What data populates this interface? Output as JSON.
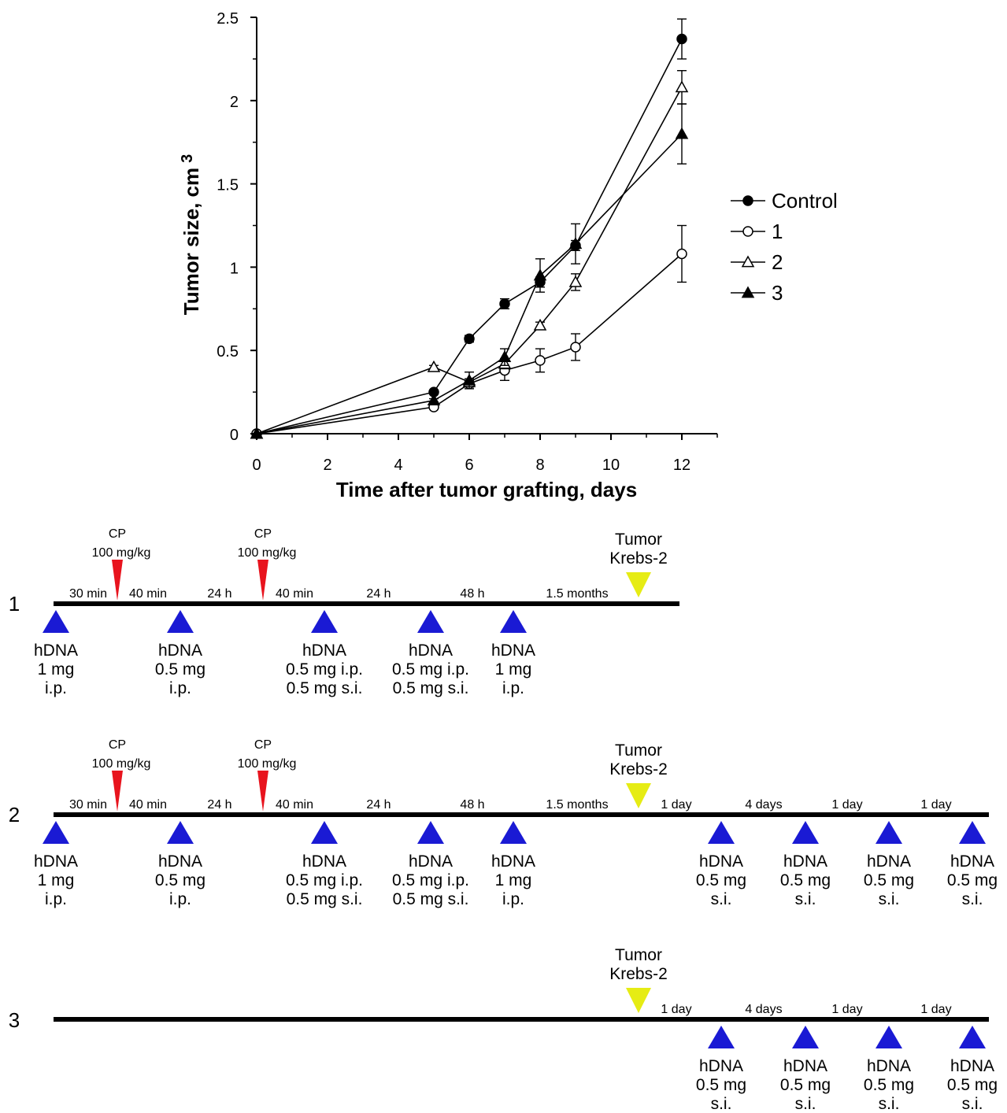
{
  "chart_data": {
    "type": "line",
    "title": "",
    "xlabel": "Time after tumor grafting, days",
    "ylabel": "Tumor size, cm",
    "ylabel_superscript": "3",
    "xlim": [
      0,
      13
    ],
    "ylim": [
      0,
      2.5
    ],
    "xticks": [
      0,
      2,
      4,
      6,
      8,
      10,
      12
    ],
    "yticks": [
      0,
      0.5,
      1,
      1.5,
      2,
      2.5
    ],
    "xtick_labels": [
      "0",
      "2",
      "4",
      "6",
      "8",
      "10",
      "12"
    ],
    "ytick_labels": [
      "0",
      "0.5",
      "1",
      "1.5",
      "2",
      "2.5"
    ],
    "grid": false,
    "legend_position": "right",
    "series": [
      {
        "name": "Control",
        "marker": "circle-filled",
        "x": [
          0,
          5,
          6,
          7,
          8,
          9,
          12
        ],
        "y": [
          0,
          0.25,
          0.57,
          0.78,
          0.91,
          1.13,
          2.37
        ],
        "err": [
          0,
          0.01,
          0.02,
          0.03,
          0.03,
          0.03,
          0.12
        ]
      },
      {
        "name": "1",
        "marker": "circle-open",
        "x": [
          0,
          5,
          6,
          7,
          8,
          9,
          12
        ],
        "y": [
          0,
          0.16,
          0.3,
          0.38,
          0.44,
          0.52,
          1.08
        ],
        "err": [
          0,
          0.01,
          0.02,
          0.06,
          0.07,
          0.08,
          0.17
        ]
      },
      {
        "name": "2",
        "marker": "triangle-open",
        "x": [
          0,
          5,
          6,
          7,
          8,
          9,
          12
        ],
        "y": [
          0,
          0.4,
          0.31,
          0.42,
          0.65,
          0.91,
          2.08
        ],
        "err": [
          0,
          0.01,
          0.02,
          0.03,
          0.02,
          0.05,
          0.1
        ]
      },
      {
        "name": "3",
        "marker": "triangle-filled",
        "x": [
          0,
          5,
          6,
          7,
          8,
          9,
          12
        ],
        "y": [
          0,
          0.2,
          0.32,
          0.46,
          0.95,
          1.14,
          1.8
        ],
        "err": [
          0,
          0.01,
          0.05,
          0.05,
          0.1,
          0.12,
          0.18
        ]
      }
    ]
  },
  "colors": {
    "hdna": "#1a1ad4",
    "cp": "#e8141e",
    "tumor": "#e6ec14",
    "line": "#000000"
  },
  "cp_label": {
    "name": "CP",
    "dose": "100 mg/kg"
  },
  "tumor_label": {
    "line1": "Tumor",
    "line2": "Krebs-2"
  },
  "protocols": [
    {
      "label": "1",
      "segments": [
        "30 min",
        "40 min",
        "24 h",
        "40 min",
        "24 h",
        "48 h",
        "1.5 months"
      ],
      "cp_marks": 2,
      "tumor": true,
      "hdna": [
        {
          "lines": [
            "hDNA",
            "1 mg",
            "i.p."
          ]
        },
        {
          "lines": [
            "hDNA",
            "0.5 mg",
            "i.p."
          ]
        },
        {
          "lines": [
            "hDNA",
            "0.5 mg i.p.",
            "0.5 mg s.i."
          ]
        },
        {
          "lines": [
            "hDNA",
            "0.5 mg i.p.",
            "0.5 mg s.i."
          ]
        },
        {
          "lines": [
            "hDNA",
            "1 mg",
            "i.p."
          ]
        }
      ]
    },
    {
      "label": "2",
      "segments": [
        "30 min",
        "40 min",
        "24 h",
        "40 min",
        "24 h",
        "48 h",
        "1.5 months",
        "1 day",
        "4 days",
        "1 day",
        "1 day"
      ],
      "cp_marks": 2,
      "tumor": true,
      "hdna": [
        {
          "lines": [
            "hDNA",
            "1 mg",
            "i.p."
          ]
        },
        {
          "lines": [
            "hDNA",
            "0.5 mg",
            "i.p."
          ]
        },
        {
          "lines": [
            "hDNA",
            "0.5 mg i.p.",
            "0.5 mg s.i."
          ]
        },
        {
          "lines": [
            "hDNA",
            "0.5 mg i.p.",
            "0.5 mg s.i."
          ]
        },
        {
          "lines": [
            "hDNA",
            "1 mg",
            "i.p."
          ]
        },
        {
          "lines": [
            "hDNA",
            "0.5 mg",
            "s.i."
          ]
        },
        {
          "lines": [
            "hDNA",
            "0.5 mg",
            "s.i."
          ]
        },
        {
          "lines": [
            "hDNA",
            "0.5 mg",
            "s.i."
          ]
        },
        {
          "lines": [
            "hDNA",
            "0.5 mg",
            "s.i."
          ]
        }
      ]
    },
    {
      "label": "3",
      "segments": [
        "1 day",
        "4 days",
        "1 day",
        "1 day"
      ],
      "cp_marks": 0,
      "tumor": true,
      "hdna": [
        {
          "lines": [
            "hDNA",
            "0.5 mg",
            "s.i."
          ]
        },
        {
          "lines": [
            "hDNA",
            "0.5 mg",
            "s.i."
          ]
        },
        {
          "lines": [
            "hDNA",
            "0.5 mg",
            "s.i."
          ]
        },
        {
          "lines": [
            "hDNA",
            "0.5 mg",
            "s.i."
          ]
        }
      ]
    }
  ]
}
